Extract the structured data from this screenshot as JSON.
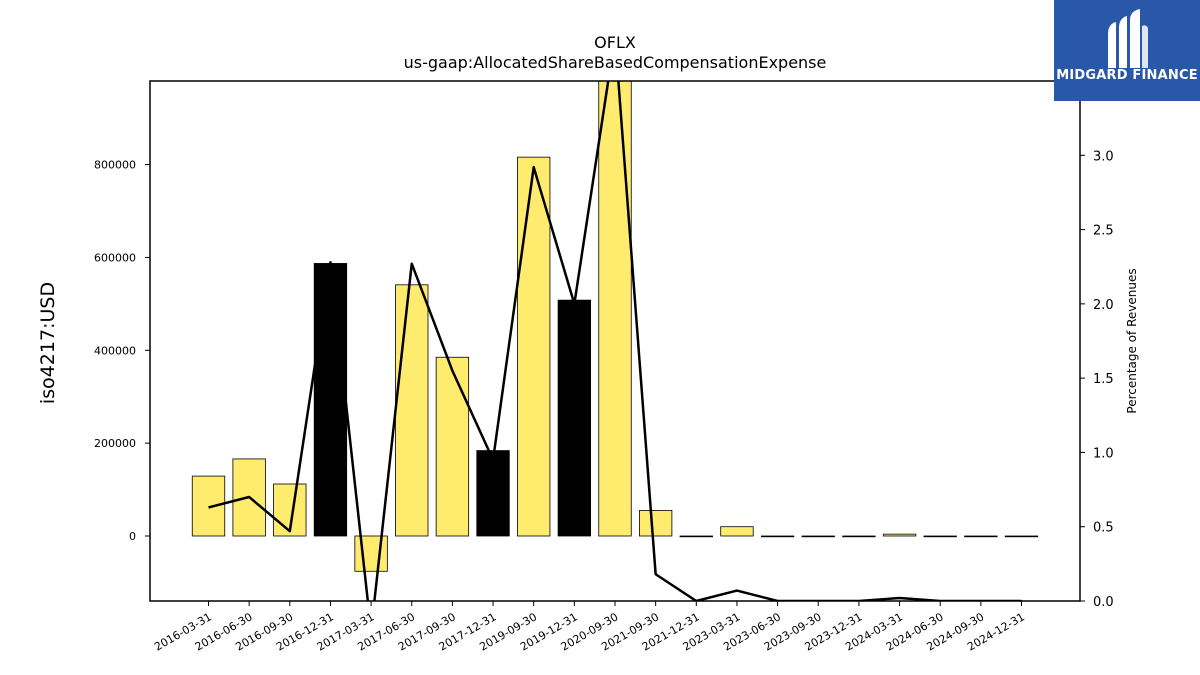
{
  "chart_data": {
    "type": "bar",
    "title": "OFLX",
    "subtitle": "us-gaap:AllocatedShareBasedCompensationExpense",
    "ylabel": "iso4217:USD",
    "ylabel_right": "Percentage of Revenues",
    "ylim": [
      -140000,
      980000
    ],
    "yticks": [
      0,
      200000,
      400000,
      600000,
      800000
    ],
    "ylim_right": [
      0.0,
      3.5
    ],
    "yticks_right": [
      "0.0",
      "0.5",
      "1.0",
      "1.5",
      "2.0",
      "2.5",
      "3.0"
    ],
    "categories": [
      "2016-03-31",
      "2016-06-30",
      "2016-09-30",
      "2016-12-31",
      "2017-03-31",
      "2017-06-30",
      "2017-09-30",
      "2017-12-31",
      "2019-09-30",
      "2019-12-31",
      "2020-09-30",
      "2021-09-30",
      "2021-12-31",
      "2023-03-31",
      "2023-06-30",
      "2023-09-30",
      "2023-12-31",
      "2024-03-31",
      "2024-06-30",
      "2024-09-30",
      "2024-12-31"
    ],
    "values": [
      129000,
      166000,
      112000,
      587000,
      -76000,
      541000,
      385000,
      184000,
      816000,
      508000,
      1000000,
      55000,
      0,
      20000,
      0,
      0,
      0,
      4000,
      0,
      0,
      0
    ],
    "bar_colors": [
      "#ffec6e",
      "#ffec6e",
      "#ffec6e",
      "#000000",
      "#ffec6e",
      "#ffec6e",
      "#ffec6e",
      "#000000",
      "#ffec6e",
      "#000000",
      "#ffec6e",
      "#ffec6e",
      "#ffec6e",
      "#ffec6e",
      "#ffec6e",
      "#ffec6e",
      "#ffec6e",
      "#ffec6e",
      "#ffec6e",
      "#ffec6e",
      "#ffec6e"
    ],
    "line_values": [
      0.63,
      0.7,
      0.47,
      2.28,
      -0.2,
      2.27,
      1.55,
      0.95,
      2.92,
      2.0,
      3.8,
      0.18,
      0.0,
      0.07,
      0.0,
      0.0,
      0.0,
      0.02,
      0.0,
      0.0,
      0.0
    ],
    "line_color": "#000000"
  },
  "logo": {
    "text": "MIDGARD FINANCE",
    "background": "#2a58a8"
  }
}
